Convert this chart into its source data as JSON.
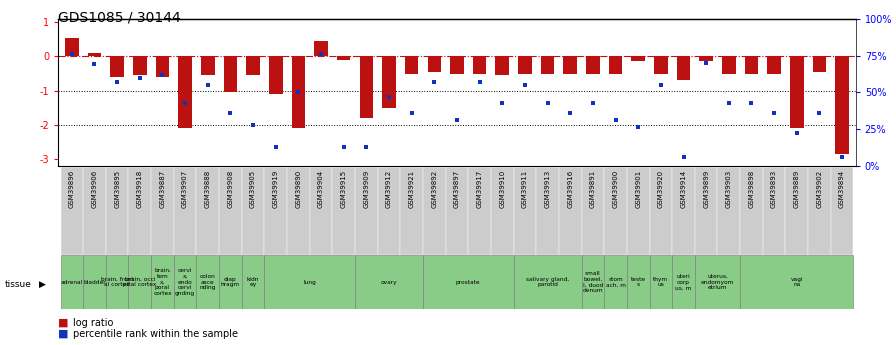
{
  "title": "GDS1085 / 30144",
  "samples": [
    "GSM39896",
    "GSM39906",
    "GSM39895",
    "GSM39918",
    "GSM39887",
    "GSM39907",
    "GSM39888",
    "GSM39908",
    "GSM39905",
    "GSM39919",
    "GSM39890",
    "GSM39904",
    "GSM39915",
    "GSM39909",
    "GSM39912",
    "GSM39921",
    "GSM39892",
    "GSM39897",
    "GSM39917",
    "GSM39910",
    "GSM39911",
    "GSM39913",
    "GSM39916",
    "GSM39891",
    "GSM39900",
    "GSM39901",
    "GSM39920",
    "GSM39914",
    "GSM39899",
    "GSM39903",
    "GSM39898",
    "GSM39893",
    "GSM39889",
    "GSM39902",
    "GSM39894"
  ],
  "log_ratio": [
    0.55,
    0.1,
    -0.6,
    -0.55,
    -0.6,
    -2.1,
    -0.55,
    -1.05,
    -0.55,
    -1.1,
    -2.1,
    0.45,
    -0.1,
    -1.8,
    -1.5,
    -0.5,
    -0.45,
    -0.5,
    -0.5,
    -0.55,
    -0.5,
    -0.5,
    -0.5,
    -0.5,
    -0.5,
    -0.12,
    -0.5,
    -0.7,
    -0.12,
    -0.5,
    -0.5,
    -0.5,
    -2.1,
    -0.45,
    -2.85
  ],
  "percentile": [
    76,
    69,
    57,
    60,
    62,
    43,
    55,
    36,
    28,
    13,
    50,
    76,
    13,
    13,
    47,
    36,
    57,
    31,
    57,
    43,
    55,
    43,
    36,
    43,
    31,
    26,
    55,
    6,
    70,
    43,
    43,
    36,
    22,
    36,
    6
  ],
  "tissue_groups": [
    {
      "label": "adrenal",
      "start": 0,
      "end": 1
    },
    {
      "label": "bladder",
      "start": 1,
      "end": 2
    },
    {
      "label": "brain, front\nal cortex",
      "start": 2,
      "end": 3
    },
    {
      "label": "brain, occi\npital cortex",
      "start": 3,
      "end": 4
    },
    {
      "label": "brain,\ntem\nx,\nporal\ncortex",
      "start": 4,
      "end": 5
    },
    {
      "label": "cervi\nx,\nendo\ncervi\ngnding",
      "start": 5,
      "end": 6
    },
    {
      "label": "colon\nasce\nnding",
      "start": 6,
      "end": 7
    },
    {
      "label": "diap\nhragm",
      "start": 7,
      "end": 8
    },
    {
      "label": "kidn\ney",
      "start": 8,
      "end": 9
    },
    {
      "label": "lung",
      "start": 9,
      "end": 13
    },
    {
      "label": "ovary",
      "start": 13,
      "end": 16
    },
    {
      "label": "prostate",
      "start": 16,
      "end": 20
    },
    {
      "label": "salivary gland,\nparotid",
      "start": 20,
      "end": 23
    },
    {
      "label": "small\nbowel,\nI, duod\ndenum",
      "start": 23,
      "end": 24
    },
    {
      "label": "stom\nach, m",
      "start": 24,
      "end": 25
    },
    {
      "label": "teste\ns",
      "start": 25,
      "end": 26
    },
    {
      "label": "thym\nus",
      "start": 26,
      "end": 27
    },
    {
      "label": "uteri\ncorp\nus, m",
      "start": 27,
      "end": 28
    },
    {
      "label": "uterus,\nendomyom\netrium",
      "start": 28,
      "end": 30
    },
    {
      "label": "vagi\nna",
      "start": 30,
      "end": 35
    }
  ],
  "ylim": [
    -3.2,
    1.1
  ],
  "yticks_left": [
    1,
    0,
    -1,
    -2,
    -3
  ],
  "y_pct_ticks": [
    100,
    75,
    50,
    25,
    0
  ],
  "bar_color": "#bb1111",
  "dot_color": "#1133bb",
  "tissue_color": "#88cc88",
  "sample_bg_color": "#cccccc",
  "bg_color": "#ffffff",
  "title_fontsize": 10
}
